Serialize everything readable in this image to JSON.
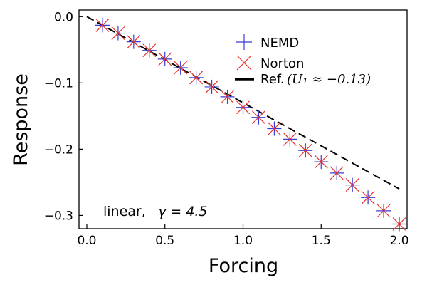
{
  "chart_data": {
    "type": "line",
    "title": "",
    "xlabel": "Forcing",
    "ylabel": "Response",
    "xlim": [
      -0.05,
      2.05
    ],
    "ylim": [
      -0.32,
      0.01
    ],
    "xticks": [
      0.0,
      0.5,
      1.0,
      1.5,
      2.0
    ],
    "xtick_labels": [
      "0.0",
      "0.5",
      "1.0",
      "1.5",
      "2.0"
    ],
    "yticks": [
      0.0,
      -0.1,
      -0.2,
      -0.3
    ],
    "ytick_labels": [
      "0.0",
      "−0.1",
      "−0.2",
      "−0.3"
    ],
    "grid": false,
    "legend_position": "top-right",
    "series": [
      {
        "name": "NEMD",
        "marker": "plus",
        "color": "#3b3bd6",
        "x": [
          0.1,
          0.2,
          0.3,
          0.4,
          0.5,
          0.6,
          0.7,
          0.8,
          0.9,
          1.0,
          1.1,
          1.2,
          1.3,
          1.4,
          1.5,
          1.6,
          1.7,
          1.8,
          1.9,
          2.0
        ],
        "y": [
          -0.013,
          -0.025,
          -0.038,
          -0.051,
          -0.064,
          -0.077,
          -0.092,
          -0.106,
          -0.121,
          -0.137,
          -0.152,
          -0.169,
          -0.185,
          -0.202,
          -0.219,
          -0.236,
          -0.254,
          -0.273,
          -0.293,
          -0.313
        ]
      },
      {
        "name": "Norton",
        "marker": "x",
        "color": "#e8312a",
        "x": [
          0.1,
          0.2,
          0.3,
          0.4,
          0.5,
          0.6,
          0.7,
          0.8,
          0.9,
          1.0,
          1.1,
          1.2,
          1.3,
          1.4,
          1.5,
          1.6,
          1.7,
          1.8,
          1.9,
          2.0
        ],
        "y": [
          -0.013,
          -0.025,
          -0.038,
          -0.051,
          -0.064,
          -0.077,
          -0.092,
          -0.106,
          -0.121,
          -0.137,
          -0.152,
          -0.169,
          -0.185,
          -0.202,
          -0.219,
          -0.236,
          -0.254,
          -0.273,
          -0.293,
          -0.313
        ]
      },
      {
        "name": "Ref.",
        "name_math": "(U₁ ≈ −0.13)",
        "line_style": "dashed",
        "color": "#000000",
        "x": [
          0.0,
          2.0
        ],
        "y": [
          0.0,
          -0.26
        ]
      }
    ],
    "annotations": [
      {
        "text": "linear, ",
        "math": "γ = 4.5",
        "position": "bottom-left"
      }
    ]
  }
}
